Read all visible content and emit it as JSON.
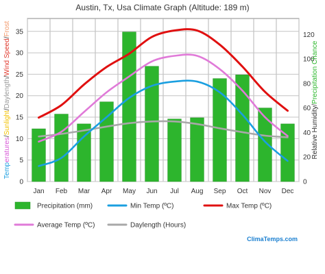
{
  "chart_data": {
    "type": "bar",
    "title": "Austin, Tx, Usa Climate Graph (Altitude: 189 m)",
    "categories": [
      "Jan",
      "Feb",
      "Mar",
      "Apr",
      "May",
      "Jun",
      "Jul",
      "Aug",
      "Sep",
      "Oct",
      "Nov",
      "Dec"
    ],
    "left_axis": {
      "ylim": [
        0,
        38
      ],
      "ticks": [
        0,
        5,
        10,
        15,
        20,
        25,
        30,
        35
      ],
      "label_parts": [
        {
          "text": "Temp",
          "color": "#1e9fe0"
        },
        {
          "text": "eratures",
          "color": "#d85bd8"
        },
        {
          "text": "/",
          "color": "#333333"
        },
        {
          "text": "Sunlight",
          "color": "#f2c200"
        },
        {
          "text": "/",
          "color": "#333333"
        },
        {
          "text": "Daylength",
          "color": "#9a9a9a"
        },
        {
          "text": "/",
          "color": "#333333"
        },
        {
          "text": "Wind Speed",
          "color": "#e13b2f"
        },
        {
          "text": "/",
          "color": "#333333"
        },
        {
          "text": "Frost",
          "color": "#f39a6c"
        }
      ]
    },
    "right_axis": {
      "ylim": [
        0,
        133
      ],
      "ticks": [
        0,
        20,
        40,
        60,
        80,
        100,
        120
      ],
      "label_parts": [
        {
          "text": "Relative Humidity",
          "color": "#333333"
        },
        {
          "text": "/",
          "color": "#333333"
        },
        {
          "text": "Precipitation Chance",
          "color": "#2eb82e"
        }
      ]
    },
    "series": [
      {
        "name": "Precipitation (mm)",
        "type": "bar",
        "axis": "right",
        "color": "#2db52d",
        "values": [
          43,
          55,
          47,
          65,
          122,
          94,
          51,
          52,
          84,
          87,
          60,
          47
        ]
      },
      {
        "name": "Min Temp (ºC)",
        "type": "line",
        "axis": "left",
        "color": "#1a9fe0",
        "values": [
          3.6,
          5.5,
          10.5,
          15.0,
          19.5,
          22.3,
          23.3,
          23.3,
          20.8,
          15.6,
          9.3,
          4.8
        ]
      },
      {
        "name": "Max Temp (ºC)",
        "type": "line",
        "axis": "left",
        "color": "#e01010",
        "values": [
          14.9,
          17.8,
          22.6,
          26.7,
          29.8,
          33.7,
          35.2,
          35.2,
          31.9,
          26.8,
          20.9,
          16.5
        ]
      },
      {
        "name": "Average Temp (ºC)",
        "type": "line",
        "axis": "left",
        "color": "#e07ad8",
        "values": [
          9.3,
          11.6,
          16.2,
          20.8,
          24.5,
          28.0,
          29.3,
          29.3,
          26.2,
          21.2,
          15.0,
          10.6
        ]
      },
      {
        "name": "Daylength (Hours)",
        "type": "line",
        "axis": "left",
        "color": "#a8a8a8",
        "values": [
          10.5,
          11.1,
          11.9,
          12.8,
          13.6,
          14.0,
          14.0,
          13.4,
          12.4,
          11.5,
          10.7,
          10.3
        ]
      }
    ],
    "grid": true
  },
  "brand": "ClimaTemps.com"
}
